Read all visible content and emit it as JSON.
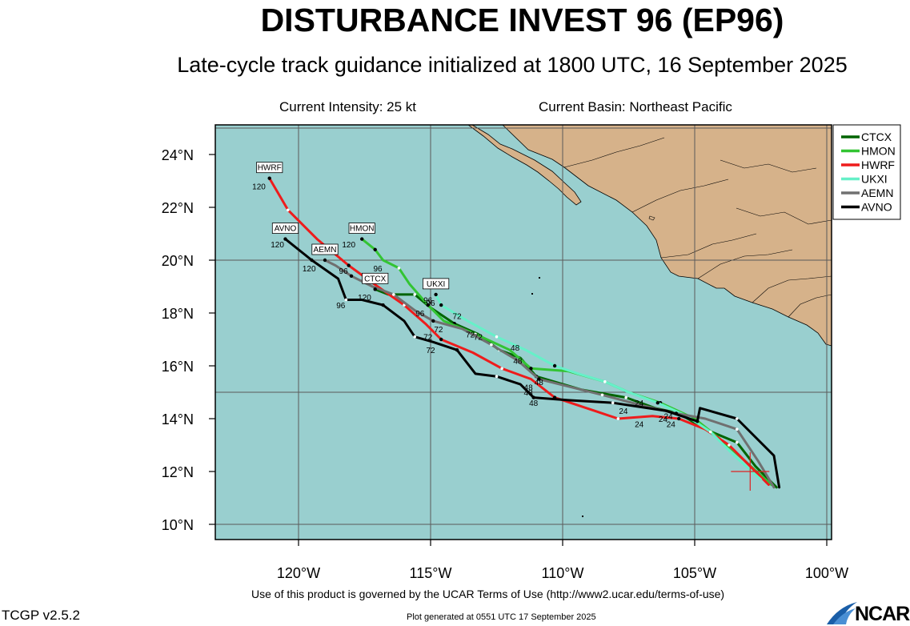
{
  "title": "DISTURBANCE INVEST 96 (EP96)",
  "subtitle": "Late-cycle track guidance initialized at 1800 UTC, 16 September 2025",
  "intensity": "Current Intensity: 25 kt",
  "basin": "Current Basin: Northeast Pacific",
  "footer_terms": "Use of this product is governed by the UCAR Terms of Use (http://www2.ucar.edu/terms-of-use)",
  "version": "TCGP v2.5.2",
  "generated": "Plot generated at 0551 UTC   17 September 2025",
  "logo_text": "NCAR",
  "colors": {
    "ocean": "#99cfcf",
    "land": "#d6b28a",
    "CTCX": "#006400",
    "HMON": "#33c433",
    "HWRF": "#ee1c1c",
    "UKXI": "#66f0c8",
    "AEMN": "#707070",
    "AVNO": "#000000"
  },
  "map": {
    "lon_ticks": [
      "120°W",
      "115°W",
      "110°W",
      "105°W",
      "100°W"
    ],
    "lat_ticks": [
      "10°N",
      "12°N",
      "14°N",
      "16°N",
      "18°N",
      "20°N",
      "22°N",
      "24°N"
    ],
    "current_position": [
      -102.9,
      12.0
    ]
  },
  "tracks": [
    {
      "name": "CTCX",
      "end_label": "CTCX",
      "points": [
        [
          -101.9,
          11.4
        ],
        [
          -102.7,
          12.2
        ],
        [
          -103.4,
          13.1
        ],
        [
          -104.6,
          13.6
        ],
        [
          -105.6,
          14.2
        ],
        [
          -106.5,
          14.4
        ],
        [
          -107.6,
          14.8
        ],
        [
          -109.3,
          15.1
        ],
        [
          -111.0,
          15.6
        ],
        [
          -111.6,
          16.3
        ],
        [
          -112.4,
          16.6
        ],
        [
          -113.2,
          17.2
        ],
        [
          -114.1,
          17.6
        ],
        [
          -115.0,
          18.2
        ],
        [
          -115.6,
          18.7
        ],
        [
          -116.6,
          18.7
        ],
        [
          -117.1,
          18.9
        ]
      ],
      "hour_labels": [
        [
          "24",
          -106.0,
          14.1
        ],
        [
          "48",
          -111.3,
          15.0
        ],
        [
          "72",
          -114.7,
          17.4
        ],
        [
          "96",
          -115.1,
          18.5
        ],
        [
          "120",
          -117.5,
          18.6
        ]
      ]
    },
    {
      "name": "HMON",
      "end_label": "HMON",
      "points": [
        [
          -102.1,
          11.5
        ],
        [
          -103.1,
          12.4
        ],
        [
          -104.0,
          13.2
        ],
        [
          -105.0,
          14.0
        ],
        [
          -106.3,
          14.6
        ],
        [
          -107.5,
          15.0
        ],
        [
          -108.4,
          15.4
        ],
        [
          -109.8,
          15.8
        ],
        [
          -111.2,
          15.9
        ],
        [
          -112.0,
          16.6
        ],
        [
          -113.3,
          17.2
        ],
        [
          -114.5,
          17.7
        ],
        [
          -115.1,
          18.3
        ],
        [
          -115.8,
          19.1
        ],
        [
          -116.2,
          19.7
        ],
        [
          -116.8,
          20.0
        ],
        [
          -117.1,
          20.4
        ],
        [
          -117.6,
          20.8
        ]
      ],
      "hour_labels": [
        [
          "24",
          -107.1,
          14.6
        ],
        [
          "48",
          -111.7,
          16.2
        ],
        [
          "72",
          -113.2,
          17.1
        ],
        [
          "96",
          -117.0,
          19.7
        ],
        [
          "120",
          -118.1,
          20.6
        ]
      ]
    },
    {
      "name": "HWRF",
      "end_label": "HWRF",
      "points": [
        [
          -102.2,
          11.5
        ],
        [
          -102.9,
          12.2
        ],
        [
          -103.7,
          13.0
        ],
        [
          -104.6,
          13.6
        ],
        [
          -105.6,
          14.0
        ],
        [
          -106.6,
          14.1
        ],
        [
          -107.9,
          14.0
        ],
        [
          -108.8,
          14.3
        ],
        [
          -110.3,
          14.8
        ],
        [
          -111.2,
          15.5
        ],
        [
          -112.3,
          15.9
        ],
        [
          -113.4,
          16.5
        ],
        [
          -114.6,
          17.0
        ],
        [
          -115.2,
          17.6
        ],
        [
          -116.0,
          18.3
        ],
        [
          -117.0,
          19.0
        ],
        [
          -118.1,
          19.8
        ],
        [
          -119.3,
          20.8
        ],
        [
          -120.4,
          21.9
        ],
        [
          -121.1,
          23.1
        ]
      ],
      "hour_labels": [
        [
          "24",
          -107.1,
          13.8
        ],
        [
          "48",
          -110.9,
          15.4
        ],
        [
          "72",
          -113.5,
          17.2
        ],
        [
          "96",
          -115.4,
          18.0
        ],
        [
          "120",
          -121.5,
          22.8
        ]
      ]
    },
    {
      "name": "UKXI",
      "end_label": "UKXI",
      "points": [
        [
          -102.5,
          11.7
        ],
        [
          -103.5,
          12.6
        ],
        [
          -104.4,
          13.5
        ],
        [
          -105.3,
          14.1
        ],
        [
          -106.4,
          14.6
        ],
        [
          -107.5,
          15.0
        ],
        [
          -108.4,
          15.4
        ],
        [
          -109.4,
          15.7
        ],
        [
          -110.3,
          16.0
        ],
        [
          -111.4,
          16.6
        ],
        [
          -112.5,
          17.1
        ],
        [
          -113.6,
          17.7
        ],
        [
          -114.6,
          18.3
        ],
        [
          -114.8,
          18.7
        ]
      ],
      "hour_labels": [
        [
          "24",
          -105.9,
          13.8
        ],
        [
          "48",
          -111.8,
          16.7
        ],
        [
          "72",
          -114.0,
          17.9
        ],
        [
          "96",
          -115.0,
          18.4
        ]
      ]
    },
    {
      "name": "AEMN",
      "end_label": "AEMN",
      "points": [
        [
          -102.0,
          11.4
        ],
        [
          -102.6,
          12.4
        ],
        [
          -103.4,
          13.6
        ],
        [
          -104.6,
          14.0
        ],
        [
          -105.7,
          14.2
        ],
        [
          -107.0,
          14.5
        ],
        [
          -108.5,
          14.9
        ],
        [
          -109.7,
          15.2
        ],
        [
          -110.9,
          15.5
        ],
        [
          -111.7,
          16.2
        ],
        [
          -112.7,
          16.8
        ],
        [
          -113.8,
          17.4
        ],
        [
          -114.9,
          17.7
        ],
        [
          -115.6,
          18.1
        ],
        [
          -116.4,
          18.7
        ],
        [
          -117.2,
          19.0
        ],
        [
          -118.0,
          19.4
        ],
        [
          -118.6,
          19.8
        ],
        [
          -119.0,
          20.0
        ]
      ],
      "hour_labels": [
        [
          "24",
          -106.2,
          14.0
        ],
        [
          "48",
          -111.3,
          15.2
        ],
        [
          "72",
          -115.1,
          17.1
        ],
        [
          "96",
          -118.3,
          19.6
        ],
        [
          "120",
          -119.6,
          19.7
        ]
      ]
    },
    {
      "name": "AVNO",
      "end_label": "AVNO",
      "points": [
        [
          -101.8,
          11.4
        ],
        [
          -102.0,
          12.6
        ],
        [
          -103.4,
          14.0
        ],
        [
          -104.8,
          14.4
        ],
        [
          -104.9,
          13.9
        ],
        [
          -106.1,
          14.3
        ],
        [
          -108.1,
          14.6
        ],
        [
          -109.8,
          14.7
        ],
        [
          -111.1,
          14.8
        ],
        [
          -111.6,
          15.3
        ],
        [
          -112.5,
          15.6
        ],
        [
          -113.3,
          15.7
        ],
        [
          -114.0,
          16.6
        ],
        [
          -114.9,
          16.9
        ],
        [
          -115.6,
          17.1
        ],
        [
          -116.0,
          17.7
        ],
        [
          -116.8,
          18.3
        ],
        [
          -117.6,
          18.5
        ],
        [
          -118.2,
          18.5
        ],
        [
          -118.5,
          19.3
        ],
        [
          -119.5,
          20.0
        ],
        [
          -120.5,
          20.8
        ]
      ],
      "hour_labels": [
        [
          "24",
          -107.7,
          14.3
        ],
        [
          "48",
          -111.1,
          14.6
        ],
        [
          "72",
          -115.0,
          16.6
        ],
        [
          "96",
          -118.4,
          18.3
        ],
        [
          "120",
          -120.8,
          20.6
        ]
      ]
    }
  ],
  "legend": [
    "CTCX",
    "HMON",
    "HWRF",
    "UKXI",
    "AEMN",
    "AVNO"
  ]
}
